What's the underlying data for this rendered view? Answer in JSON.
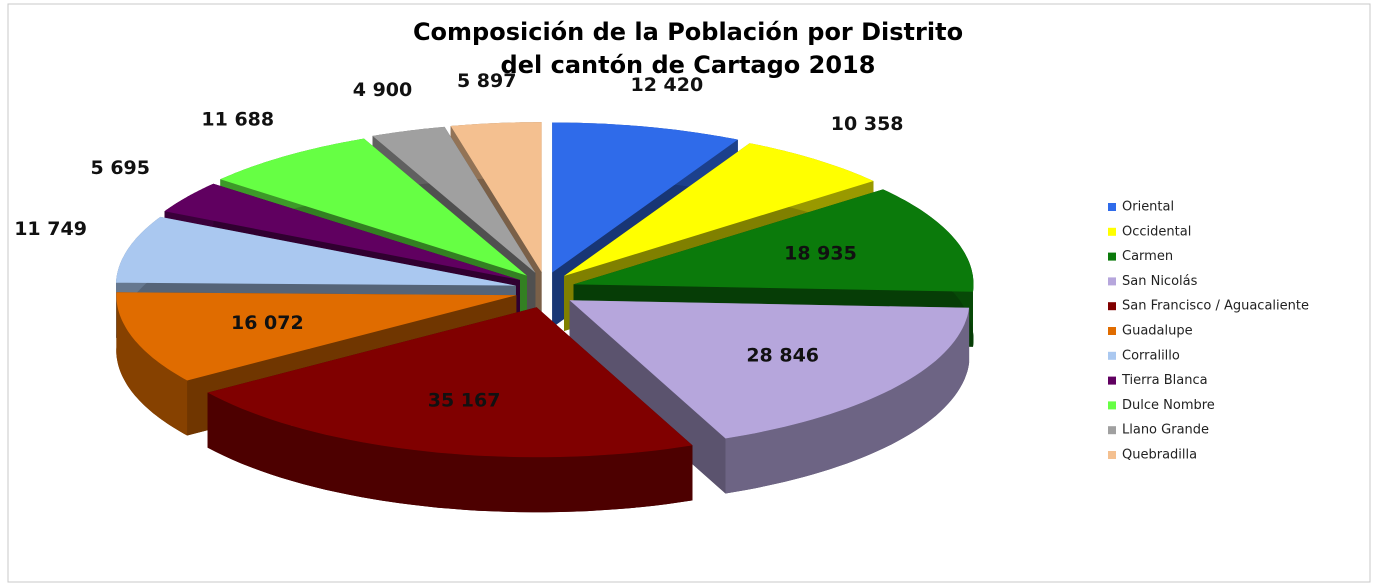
{
  "chart_data": {
    "type": "pie",
    "title": [
      "Composición de la Población por Distrito",
      "del cantón de Cartago 2018"
    ],
    "categories": [
      "Oriental",
      "Occidental",
      "Carmen",
      "San Nicolás",
      "San Francisco / Aguacaliente",
      "Guadalupe",
      "Corralillo",
      "Tierra Blanca",
      "Dulce Nombre",
      "Llano Grande",
      "Quebradilla"
    ],
    "values": [
      12420,
      10358,
      18935,
      28846,
      35167,
      16072,
      11749,
      5695,
      11688,
      4900,
      5897
    ],
    "value_labels": [
      "12 420",
      "10 358",
      "18 935",
      "28 846",
      "35 167",
      "16 072",
      "11 749",
      "5 695",
      "11 688",
      "4 900",
      "5 897"
    ],
    "colors": [
      "#2f6bea",
      "#ffff00",
      "#0b7a0b",
      "#b6a6dc",
      "#800000",
      "#e06c00",
      "#aac8f0",
      "#600060",
      "#66ff44",
      "#a0a0a0",
      "#f4c090"
    ],
    "legend": "right"
  }
}
